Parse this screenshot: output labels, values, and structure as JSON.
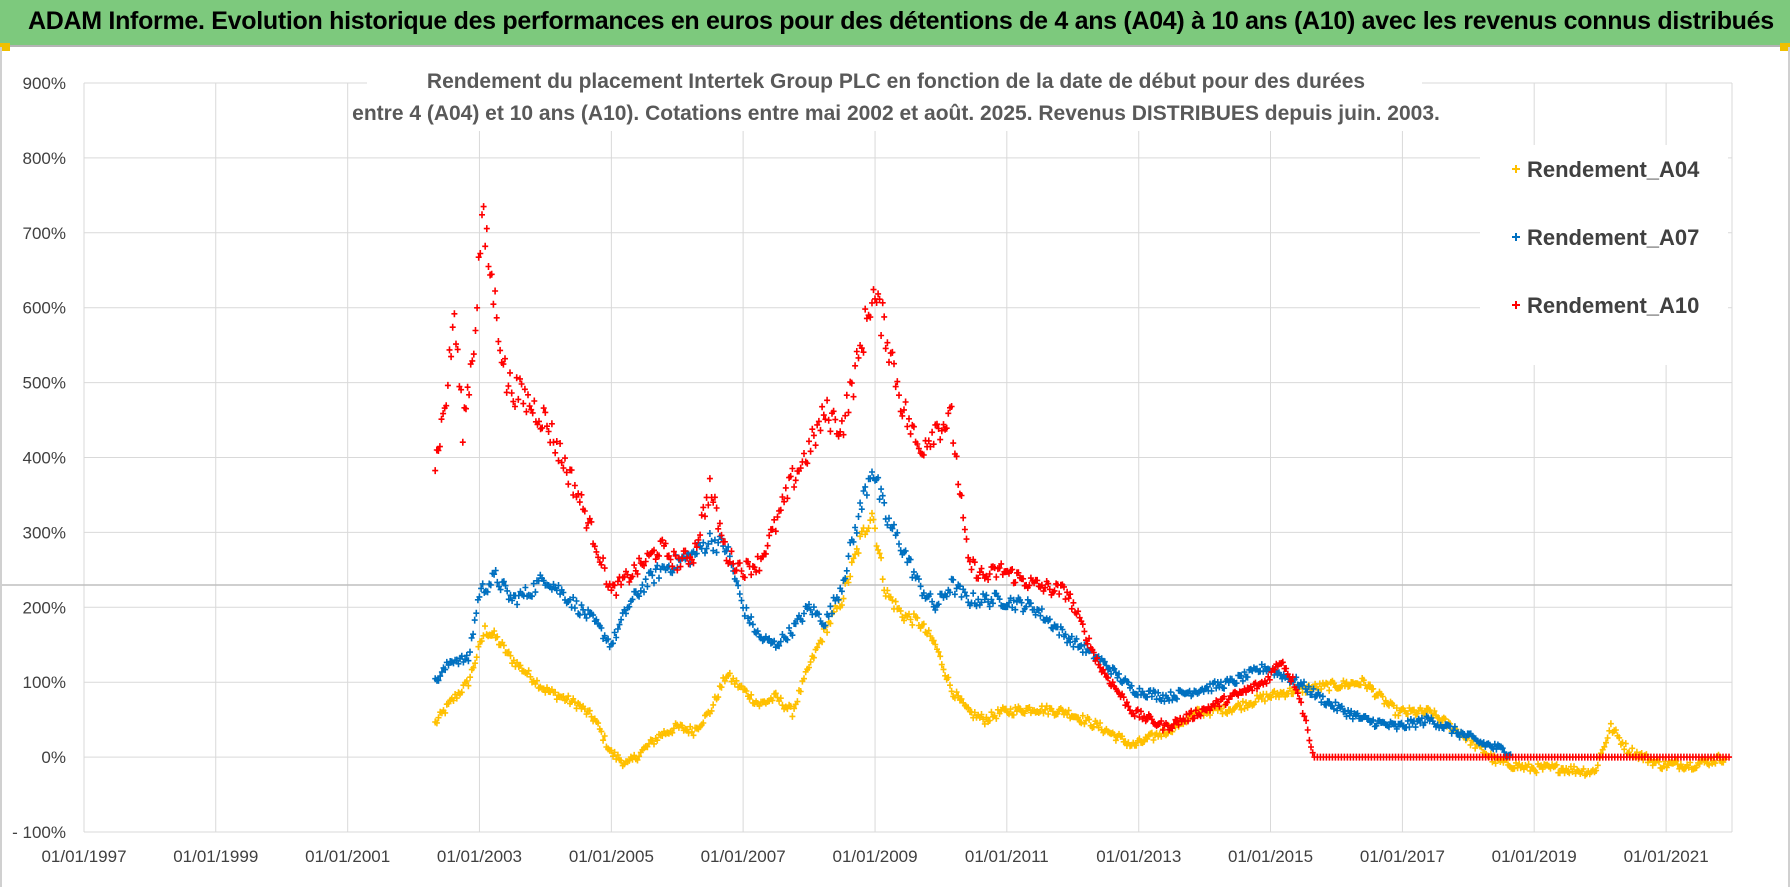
{
  "banner": {
    "title": "ADAM Informe. Evolution historique des performances en euros pour des détentions de 4 ans (A04) à 10 ans (A10) avec les revenus connus distribués"
  },
  "colors": {
    "banner_bg": "#7dc97d",
    "A04": "#ffc000",
    "A07": "#0070c0",
    "A10": "#ff0000",
    "grid": "#d9d9d9"
  },
  "chart_data": {
    "type": "scatter",
    "title_line1": "Rendement du placement Intertek Group PLC en fonction de la date de début pour des durées",
    "title_line2": "entre 4 (A04) et 10 ans (A10).  Cotations entre mai 2002 et août. 2025. Revenus DISTRIBUES depuis juin. 2003.",
    "x_ticks": [
      "01/01/1997",
      "01/01/1999",
      "01/01/2001",
      "01/01/2003",
      "01/01/2005",
      "01/01/2007",
      "01/01/2009",
      "01/01/2011",
      "01/01/2013",
      "01/01/2015",
      "01/01/2017",
      "01/01/2019",
      "01/01/2021"
    ],
    "y_ticks": [
      "- 100%",
      "0%",
      "100%",
      "200%",
      "300%",
      "400%",
      "500%",
      "600%",
      "700%",
      "800%",
      "900%"
    ],
    "xlim": [
      "1997-01-01",
      "2022-01-01"
    ],
    "ylim": [
      -100,
      900
    ],
    "grid": true,
    "legend_position": "top-right",
    "series": [
      {
        "name": "Rendement_A04",
        "points": [
          [
            "2002-05-01",
            45
          ],
          [
            "2002-08-01",
            75
          ],
          [
            "2002-11-01",
            100
          ],
          [
            "2003-02-01",
            170
          ],
          [
            "2003-04-01",
            160
          ],
          [
            "2003-07-01",
            130
          ],
          [
            "2003-10-01",
            110
          ],
          [
            "2004-01-01",
            90
          ],
          [
            "2004-04-01",
            80
          ],
          [
            "2004-07-01",
            70
          ],
          [
            "2004-10-01",
            50
          ],
          [
            "2005-01-01",
            5
          ],
          [
            "2005-04-01",
            -10
          ],
          [
            "2005-07-01",
            10
          ],
          [
            "2005-10-01",
            30
          ],
          [
            "2006-01-01",
            40
          ],
          [
            "2006-04-01",
            35
          ],
          [
            "2006-07-01",
            60
          ],
          [
            "2006-10-01",
            110
          ],
          [
            "2007-01-01",
            90
          ],
          [
            "2007-04-01",
            70
          ],
          [
            "2007-07-01",
            80
          ],
          [
            "2007-10-01",
            60
          ],
          [
            "2008-01-01",
            120
          ],
          [
            "2008-04-01",
            170
          ],
          [
            "2008-07-01",
            210
          ],
          [
            "2008-10-01",
            280
          ],
          [
            "2008-12-15",
            330
          ],
          [
            "2009-03-01",
            220
          ],
          [
            "2009-06-01",
            190
          ],
          [
            "2009-09-01",
            180
          ],
          [
            "2009-12-01",
            150
          ],
          [
            "2010-03-01",
            90
          ],
          [
            "2010-06-01",
            60
          ],
          [
            "2010-09-01",
            50
          ],
          [
            "2010-12-01",
            60
          ],
          [
            "2011-06-01",
            65
          ],
          [
            "2011-12-01",
            60
          ],
          [
            "2012-06-01",
            40
          ],
          [
            "2012-12-01",
            15
          ],
          [
            "2013-06-01",
            35
          ],
          [
            "2013-12-01",
            60
          ],
          [
            "2014-06-01",
            65
          ],
          [
            "2014-12-01",
            80
          ],
          [
            "2015-06-01",
            90
          ],
          [
            "2015-12-01",
            95
          ],
          [
            "2016-06-01",
            100
          ],
          [
            "2016-12-01",
            60
          ],
          [
            "2017-06-01",
            60
          ],
          [
            "2017-12-01",
            30
          ],
          [
            "2018-06-01",
            -5
          ],
          [
            "2018-12-01",
            -15
          ],
          [
            "2019-06-01",
            -15
          ],
          [
            "2019-12-01",
            -20
          ],
          [
            "2020-03-01",
            40
          ],
          [
            "2020-06-01",
            10
          ],
          [
            "2020-12-01",
            -10
          ],
          [
            "2021-06-01",
            -10
          ],
          [
            "2021-12-01",
            0
          ]
        ]
      },
      {
        "name": "Rendement_A07",
        "points": [
          [
            "2002-05-01",
            100
          ],
          [
            "2002-08-01",
            130
          ],
          [
            "2002-11-01",
            130
          ],
          [
            "2003-01-01",
            220
          ],
          [
            "2003-04-01",
            240
          ],
          [
            "2003-07-01",
            210
          ],
          [
            "2003-10-01",
            220
          ],
          [
            "2004-01-01",
            240
          ],
          [
            "2004-04-01",
            220
          ],
          [
            "2004-07-01",
            200
          ],
          [
            "2004-10-01",
            180
          ],
          [
            "2005-01-01",
            150
          ],
          [
            "2005-04-01",
            200
          ],
          [
            "2005-07-01",
            230
          ],
          [
            "2005-10-01",
            250
          ],
          [
            "2006-01-01",
            260
          ],
          [
            "2006-04-01",
            270
          ],
          [
            "2006-07-01",
            290
          ],
          [
            "2006-10-01",
            280
          ],
          [
            "2007-01-01",
            200
          ],
          [
            "2007-04-01",
            160
          ],
          [
            "2007-07-01",
            150
          ],
          [
            "2007-10-01",
            170
          ],
          [
            "2008-01-01",
            200
          ],
          [
            "2008-04-01",
            180
          ],
          [
            "2008-07-01",
            230
          ],
          [
            "2008-10-01",
            320
          ],
          [
            "2008-12-15",
            390
          ],
          [
            "2009-03-01",
            320
          ],
          [
            "2009-06-01",
            280
          ],
          [
            "2009-09-01",
            230
          ],
          [
            "2009-12-01",
            200
          ],
          [
            "2010-03-01",
            230
          ],
          [
            "2010-06-01",
            210
          ],
          [
            "2010-09-01",
            210
          ],
          [
            "2010-12-01",
            210
          ],
          [
            "2011-06-01",
            200
          ],
          [
            "2011-12-01",
            160
          ],
          [
            "2012-06-01",
            130
          ],
          [
            "2012-12-01",
            90
          ],
          [
            "2013-06-01",
            80
          ],
          [
            "2013-12-01",
            90
          ],
          [
            "2014-06-01",
            100
          ],
          [
            "2014-12-01",
            120
          ],
          [
            "2015-06-01",
            100
          ],
          [
            "2015-12-01",
            70
          ],
          [
            "2016-06-01",
            50
          ],
          [
            "2016-12-01",
            40
          ],
          [
            "2017-06-01",
            50
          ],
          [
            "2017-12-01",
            30
          ],
          [
            "2018-03-01",
            20
          ],
          [
            "2018-09-01",
            5
          ]
        ]
      },
      {
        "name": "Rendement_A10",
        "points": [
          [
            "2002-05-01",
            390
          ],
          [
            "2002-07-01",
            480
          ],
          [
            "2002-08-15",
            590
          ],
          [
            "2002-10-01",
            440
          ],
          [
            "2002-12-01",
            550
          ],
          [
            "2003-01-15",
            720
          ],
          [
            "2003-03-01",
            650
          ],
          [
            "2003-06-01",
            500
          ],
          [
            "2003-09-01",
            480
          ],
          [
            "2004-01-01",
            450
          ],
          [
            "2004-04-01",
            400
          ],
          [
            "2004-07-01",
            350
          ],
          [
            "2004-10-01",
            290
          ],
          [
            "2005-01-01",
            220
          ],
          [
            "2005-04-01",
            240
          ],
          [
            "2005-07-01",
            260
          ],
          [
            "2005-10-01",
            280
          ],
          [
            "2006-01-01",
            260
          ],
          [
            "2006-04-01",
            270
          ],
          [
            "2006-07-01",
            360
          ],
          [
            "2006-10-01",
            270
          ],
          [
            "2007-01-01",
            250
          ],
          [
            "2007-04-01",
            260
          ],
          [
            "2007-07-01",
            310
          ],
          [
            "2007-10-01",
            370
          ],
          [
            "2008-01-01",
            410
          ],
          [
            "2008-04-01",
            460
          ],
          [
            "2008-07-01",
            440
          ],
          [
            "2008-10-01",
            530
          ],
          [
            "2008-12-15",
            620
          ],
          [
            "2009-03-01",
            570
          ],
          [
            "2009-06-01",
            470
          ],
          [
            "2009-09-01",
            410
          ],
          [
            "2009-12-01",
            440
          ],
          [
            "2010-03-01",
            450
          ],
          [
            "2010-06-01",
            260
          ],
          [
            "2010-09-01",
            240
          ],
          [
            "2010-12-01",
            250
          ],
          [
            "2011-06-01",
            230
          ],
          [
            "2011-12-01",
            220
          ],
          [
            "2012-06-01",
            120
          ],
          [
            "2012-12-01",
            60
          ],
          [
            "2013-06-01",
            40
          ],
          [
            "2013-12-01",
            60
          ],
          [
            "2014-06-01",
            80
          ],
          [
            "2014-12-01",
            100
          ],
          [
            "2015-03-01",
            130
          ],
          [
            "2015-06-01",
            90
          ],
          [
            "2015-09-01",
            0
          ],
          [
            "2022-01-01",
            0
          ]
        ]
      }
    ]
  }
}
